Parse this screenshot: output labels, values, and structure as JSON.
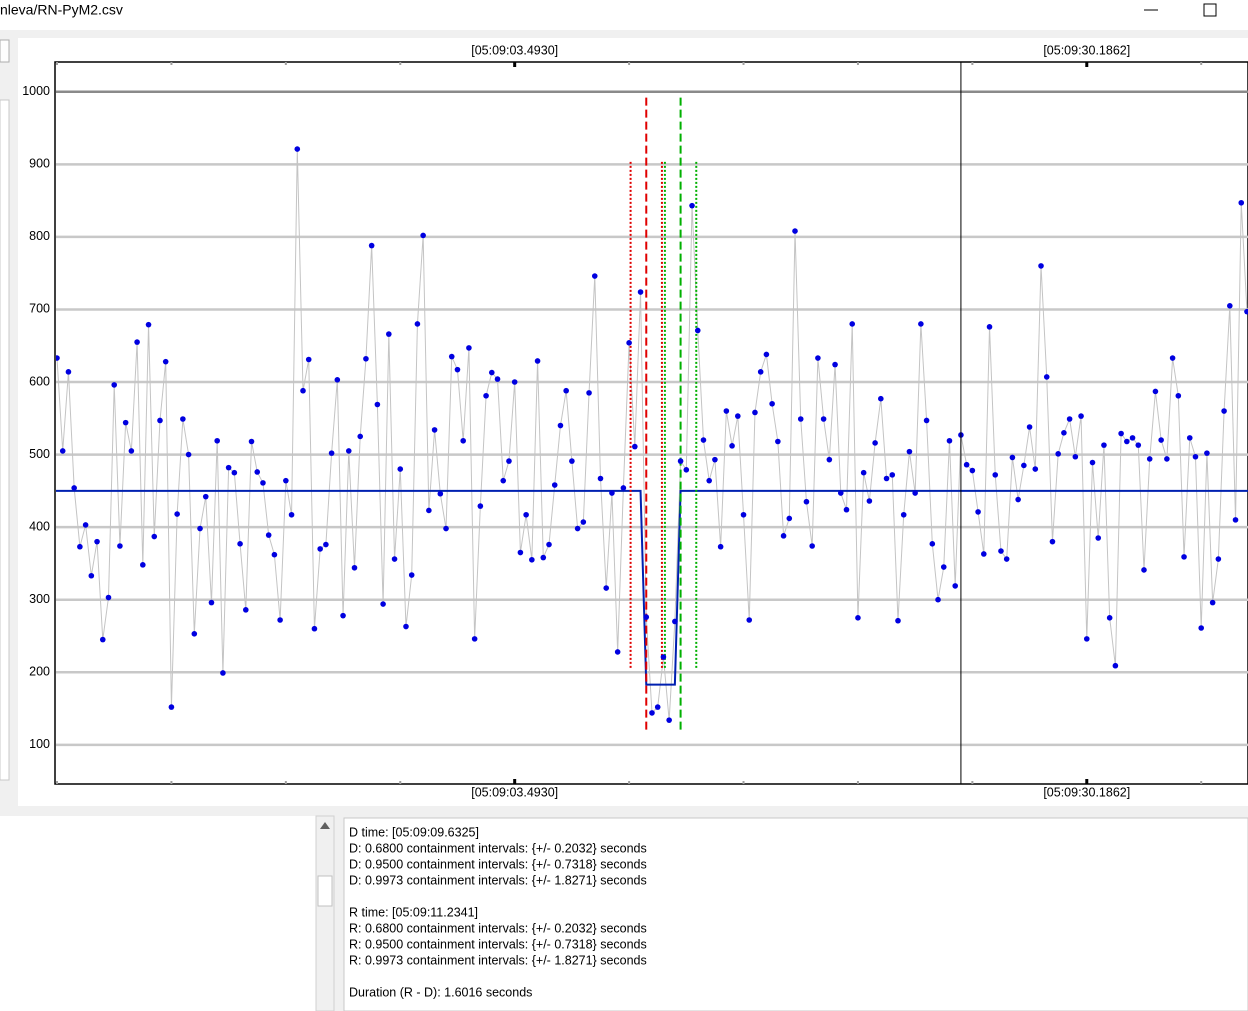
{
  "window_title": "nleva/RN-PyM2.csv",
  "chart_data": {
    "type": "line",
    "values": [
      633,
      505,
      614,
      454,
      373,
      403,
      333,
      380,
      245,
      303,
      596,
      374,
      544,
      505,
      655,
      348,
      679,
      387,
      547,
      628,
      152,
      418,
      549,
      500,
      253,
      398,
      442,
      296,
      519,
      199,
      482,
      475,
      377,
      286,
      518,
      476,
      461,
      389,
      362,
      272,
      464,
      417,
      921,
      588,
      631,
      260,
      370,
      376,
      502,
      603,
      278,
      505,
      344,
      525,
      632,
      788,
      569,
      294,
      666,
      356,
      480,
      263,
      334,
      680,
      802,
      423,
      534,
      446,
      398,
      635,
      617,
      519,
      647,
      246,
      429,
      581,
      613,
      604,
      464,
      491,
      600,
      365,
      417,
      355,
      629,
      358,
      376,
      458,
      540,
      588,
      491,
      398,
      407,
      585,
      746,
      467,
      316,
      447,
      228,
      454,
      654,
      511,
      724,
      276,
      144,
      152,
      221,
      134,
      270,
      491,
      479,
      843,
      671,
      520,
      464,
      493,
      373,
      560,
      512,
      553,
      417,
      272,
      558,
      614,
      638,
      570,
      518,
      388,
      412,
      808,
      549,
      435,
      374,
      633,
      549,
      493,
      624,
      447,
      424,
      680,
      275,
      475,
      436,
      516,
      577,
      467,
      472,
      271,
      417,
      504,
      447,
      680,
      547,
      377,
      300,
      345,
      519,
      319,
      527,
      486,
      478,
      421,
      363,
      676,
      472,
      367,
      356,
      496,
      438,
      485,
      538,
      480,
      760,
      607,
      380,
      501,
      530,
      549,
      497,
      553,
      246,
      489,
      385,
      513,
      275,
      209,
      529,
      518,
      523,
      513,
      341,
      494,
      587,
      520,
      494,
      633,
      581,
      359,
      523,
      497,
      261,
      502,
      296,
      356,
      560,
      705,
      410,
      847,
      697
    ],
    "marker_color": "#0000e0",
    "line_color": "#c4c4c4",
    "xlim": [
      -0.35,
      208.18
    ],
    "ylim": [
      46,
      1041
    ],
    "yticks": [
      100,
      200,
      300,
      400,
      500,
      600,
      700,
      800,
      900,
      1000
    ],
    "xticks": [
      {
        "value": 80,
        "label": "[05:09:03.4930]"
      },
      {
        "value": 180,
        "label": "[05:09:30.1862]"
      }
    ],
    "xminor": [
      0,
      20,
      40,
      60,
      100,
      120,
      140,
      160,
      200
    ],
    "grid": true,
    "model": {
      "color": "#0020b0",
      "x": [
        -0.35,
        102,
        103,
        108,
        109,
        208.18
      ],
      "values": [
        450,
        450,
        183,
        183,
        450,
        450
      ]
    },
    "vlines": [
      {
        "x": 100.26,
        "color": "#e00000",
        "style": "dotted",
        "ymin": 206,
        "ymax": 906
      },
      {
        "x": 103,
        "color": "#e00000",
        "style": "dashed",
        "ymin": 121,
        "ymax": 992
      },
      {
        "x": 105.74,
        "color": "#e00000",
        "style": "dotted",
        "ymin": 206,
        "ymax": 906
      },
      {
        "x": 106.26,
        "color": "#00b000",
        "style": "dotted",
        "ymin": 206,
        "ymax": 906
      },
      {
        "x": 109,
        "color": "#00b000",
        "style": "dashed",
        "ymin": 121,
        "ymax": 992
      },
      {
        "x": 111.74,
        "color": "#00b000",
        "style": "dotted",
        "ymin": 206,
        "ymax": 906
      }
    ],
    "cursor_x": 158
  },
  "info": {
    "d_block": [
      "D time: [05:09:09.6325]",
      "D: 0.6800 containment intervals: {+/- 0.2032} seconds",
      "D: 0.9500 containment intervals: {+/- 0.7318} seconds",
      "D: 0.9973 containment intervals: {+/- 1.8271} seconds"
    ],
    "r_block": [
      "R time: [05:09:11.2341]",
      "R: 0.6800 containment intervals: {+/- 0.2032} seconds",
      "R: 0.9500 containment intervals: {+/- 0.7318} seconds",
      "R: 0.9973 containment intervals: {+/- 1.8271} seconds"
    ],
    "duration": "Duration (R - D): 1.6016 seconds"
  }
}
